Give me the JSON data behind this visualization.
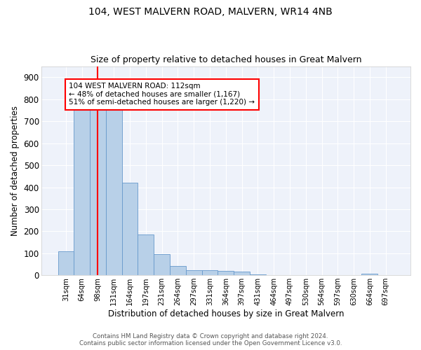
{
  "title1": "104, WEST MALVERN ROAD, MALVERN, WR14 4NB",
  "title2": "Size of property relative to detached houses in Great Malvern",
  "xlabel": "Distribution of detached houses by size in Great Malvern",
  "ylabel": "Number of detached properties",
  "bar_color": "#b8d0e8",
  "bar_edge_color": "#6699cc",
  "bg_color": "#eef2fa",
  "grid_color": "#ffffff",
  "categories": [
    "31sqm",
    "64sqm",
    "98sqm",
    "131sqm",
    "164sqm",
    "197sqm",
    "231sqm",
    "264sqm",
    "297sqm",
    "331sqm",
    "364sqm",
    "397sqm",
    "431sqm",
    "464sqm",
    "497sqm",
    "530sqm",
    "564sqm",
    "597sqm",
    "630sqm",
    "664sqm",
    "697sqm"
  ],
  "values": [
    110,
    750,
    750,
    750,
    420,
    185,
    95,
    42,
    22,
    22,
    20,
    18,
    5,
    2,
    2,
    0,
    0,
    0,
    0,
    8,
    0
  ],
  "ylim": [
    0,
    950
  ],
  "yticks": [
    0,
    100,
    200,
    300,
    400,
    500,
    600,
    700,
    800,
    900
  ],
  "property_label": "104 WEST MALVERN ROAD: 112sqm",
  "annotation_line1": "← 48% of detached houses are smaller (1,167)",
  "annotation_line2": "51% of semi-detached houses are larger (1,220) →",
  "vline_bar_index": 2,
  "footer1": "Contains HM Land Registry data © Crown copyright and database right 2024.",
  "footer2": "Contains public sector information licensed under the Open Government Licence v3.0."
}
